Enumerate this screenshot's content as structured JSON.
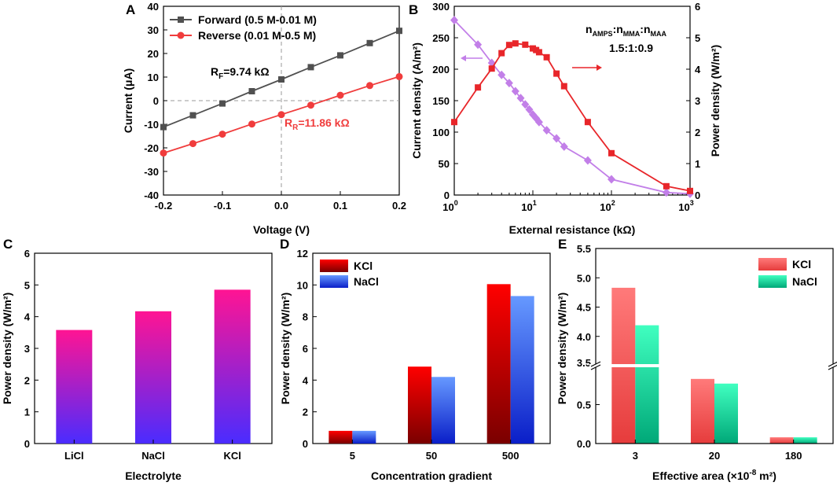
{
  "panels": [
    "A",
    "B",
    "C",
    "D",
    "E"
  ],
  "chart_data": [
    {
      "id": "A",
      "type": "line",
      "xlabel": "Voltage (V)",
      "ylabel": "Current (μA)",
      "xlim": [
        -0.2,
        0.2
      ],
      "ylim": [
        -40,
        40
      ],
      "xticks": [
        "-0.2",
        "-0.1",
        "0.0",
        "0.1",
        "0.2"
      ],
      "yticks": [
        "-40",
        "-30",
        "-20",
        "-10",
        "0",
        "10",
        "20",
        "30",
        "40"
      ],
      "series": [
        {
          "name": "Forward (0.5 M-0.01 M)",
          "color": "#505050",
          "marker": "square",
          "x": [
            -0.2,
            -0.15,
            -0.1,
            -0.05,
            0,
            0.05,
            0.1,
            0.15,
            0.2
          ],
          "y": [
            -11.2,
            -6.2,
            -1.2,
            4,
            9,
            14.2,
            19.2,
            24.4,
            29.6
          ]
        },
        {
          "name": "Reverse (0.01 M-0.5 M)",
          "color": "#f03c3c",
          "marker": "circle",
          "x": [
            -0.2,
            -0.15,
            -0.1,
            -0.05,
            0,
            0.05,
            0.1,
            0.15,
            0.2
          ],
          "y": [
            -22.2,
            -18.2,
            -14.2,
            -9.9,
            -5.9,
            -1.9,
            2.3,
            6.4,
            10.2
          ]
        }
      ],
      "annotations": {
        "rf_main": "R",
        "rf_sub": "F",
        "rf_val": "=9.74 kΩ",
        "rr_main": "R",
        "rr_sub": "R",
        "rr_val": "=11.86 kΩ"
      }
    },
    {
      "id": "B",
      "type": "line",
      "xlabel": "External resistance (kΩ)",
      "ylabel": "Current density (A/m²)",
      "ylabel_right": "Power density (W/m²)",
      "xscale": "log",
      "xlim": [
        1,
        1000
      ],
      "ylim": [
        0,
        300
      ],
      "ylim_right": [
        0,
        6
      ],
      "xticks": [
        {
          "base": "10",
          "exp": "0"
        },
        {
          "base": "10",
          "exp": "1"
        },
        {
          "base": "10",
          "exp": "2"
        },
        {
          "base": "10",
          "exp": "3"
        }
      ],
      "yticks": [
        "0",
        "50",
        "100",
        "150",
        "200",
        "250",
        "300"
      ],
      "yticks_right": [
        "0",
        "1",
        "2",
        "3",
        "4",
        "5",
        "6"
      ],
      "series": [
        {
          "name": "Current density",
          "color": "#c27fe8",
          "marker": "diamond",
          "axis": "left",
          "x": [
            1,
            2,
            3,
            4,
            5,
            6,
            7,
            8,
            9,
            10,
            11,
            12,
            15,
            20,
            25,
            50,
            100,
            500,
            1000
          ],
          "y": [
            278,
            239,
            210,
            191,
            178,
            165,
            154,
            144,
            136,
            128,
            122,
            116,
            103,
            90,
            77,
            55,
            25,
            4,
            2
          ]
        },
        {
          "name": "Power density",
          "color": "#e8262a",
          "marker": "square",
          "axis": "right",
          "x": [
            1,
            2,
            3,
            4,
            5,
            6,
            8,
            10,
            11,
            12,
            15,
            20,
            25,
            50,
            100,
            500,
            1000
          ],
          "y": [
            2.32,
            3.42,
            4.02,
            4.51,
            4.77,
            4.82,
            4.78,
            4.66,
            4.61,
            4.54,
            4.38,
            3.86,
            3.46,
            2.32,
            1.33,
            0.28,
            0.13
          ]
        }
      ],
      "annotations": {
        "n_amps": "n",
        "sub_amps": "AMPS",
        "n_mma": ":n",
        "sub_mma": "MMA",
        "n_maa": ":n",
        "sub_maa": "MAA",
        "ratio": "1.5:1:0.9"
      }
    },
    {
      "id": "C",
      "type": "bar",
      "xlabel": "Electrolyte",
      "ylabel": "Power density (W/m²)",
      "categories": [
        "LiCl",
        "NaCl",
        "KCl"
      ],
      "values": [
        3.58,
        4.17,
        4.85
      ],
      "ylim": [
        0,
        6
      ],
      "yticks": [
        "0",
        "1",
        "2",
        "3",
        "4",
        "5",
        "6"
      ],
      "colors": {
        "top": "#ff1493",
        "bottom": "#4a2cff"
      }
    },
    {
      "id": "D",
      "type": "bar",
      "xlabel": "Concentration gradient",
      "ylabel": "Power density (W/m²)",
      "categories": [
        "5",
        "50",
        "500"
      ],
      "ylim": [
        0,
        12
      ],
      "yticks": [
        "0",
        "2",
        "4",
        "6",
        "8",
        "10",
        "12"
      ],
      "series": [
        {
          "name": "KCl",
          "values": [
            0.8,
            4.85,
            10.05
          ],
          "top": "#ff0000",
          "bottom": "#7a0000"
        },
        {
          "name": "NaCl",
          "values": [
            0.8,
            4.2,
            9.3
          ],
          "top": "#6699ff",
          "bottom": "#0a1ec8"
        }
      ]
    },
    {
      "id": "E",
      "type": "bar",
      "xlabel": "Effective area (×10",
      "xlabel_exp": "-8",
      "xlabel_end": " m²)",
      "ylabel": "Power density (W/m²)",
      "categories": [
        "3",
        "20",
        "180"
      ],
      "axis_break": true,
      "ylim_lower": [
        0,
        1.0
      ],
      "ylim_upper": [
        3.5,
        5.5
      ],
      "yticks_lower": [
        "0.0",
        "0.5"
      ],
      "yticks_upper": [
        "3.5",
        "4.0",
        "4.5",
        "5.0",
        "5.5"
      ],
      "series": [
        {
          "name": "KCl",
          "values": [
            4.83,
            0.83,
            0.08
          ],
          "top": "#ff7a7a",
          "bottom": "#e63c3c"
        },
        {
          "name": "NaCl",
          "values": [
            4.19,
            0.77,
            0.08
          ],
          "top": "#40ffc0",
          "bottom": "#00a878"
        }
      ]
    }
  ]
}
